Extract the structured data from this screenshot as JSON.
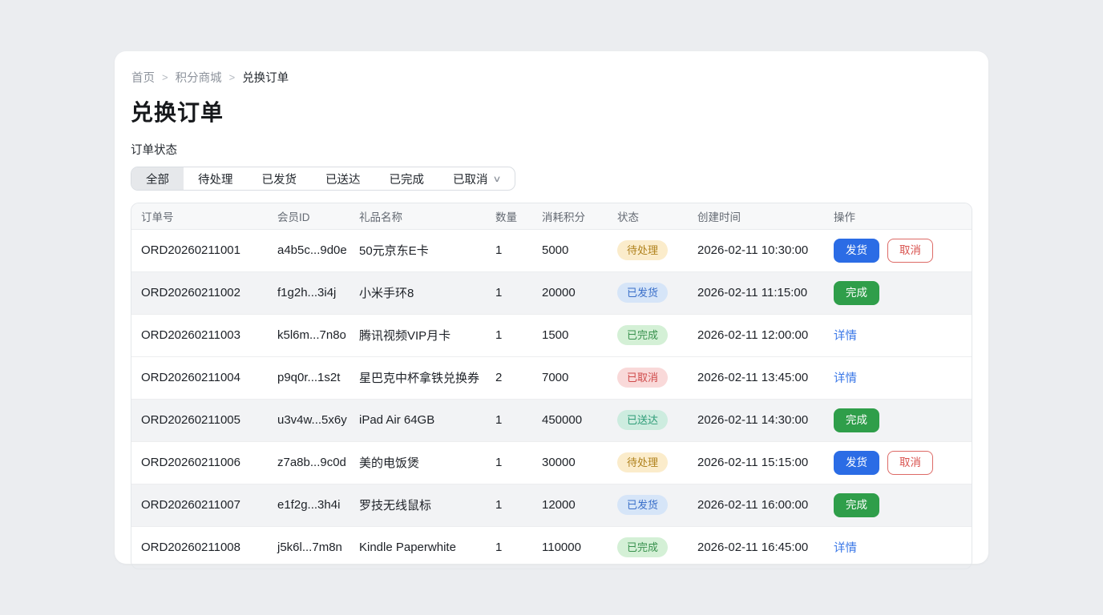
{
  "breadcrumb": {
    "separator": ">",
    "items": [
      {
        "label": "首页",
        "current": false
      },
      {
        "label": "积分商城",
        "current": false
      },
      {
        "label": "兑换订单",
        "current": true
      }
    ]
  },
  "page": {
    "title": "兑换订单",
    "filter_label": "订单状态"
  },
  "tabs": {
    "items": [
      {
        "label": "全部",
        "active": true,
        "chevron": false
      },
      {
        "label": "待处理",
        "active": false,
        "chevron": false
      },
      {
        "label": "已发货",
        "active": false,
        "chevron": false
      },
      {
        "label": "已送达",
        "active": false,
        "chevron": false
      },
      {
        "label": "已完成",
        "active": false,
        "chevron": false
      },
      {
        "label": "已取消",
        "active": false,
        "chevron": true
      }
    ]
  },
  "table": {
    "columns": [
      "订单号",
      "会员ID",
      "礼品名称",
      "数量",
      "消耗积分",
      "状态",
      "创建时间",
      "操作"
    ],
    "rows": [
      {
        "order_id": "ORD20260211001",
        "member_id": "a4b5c...9d0e",
        "gift": "50元京东E卡",
        "qty": "1",
        "points": "5000",
        "status": {
          "label": "待处理",
          "type": "pending"
        },
        "created": "2026-02-11 10:30:00",
        "actions": [
          {
            "label": "发货",
            "type": "primary",
            "name": "ship-button"
          },
          {
            "label": "取消",
            "type": "danger",
            "name": "cancel-button"
          }
        ],
        "highlight": false
      },
      {
        "order_id": "ORD20260211002",
        "member_id": "f1g2h...3i4j",
        "gift": "小米手环8",
        "qty": "1",
        "points": "20000",
        "status": {
          "label": "已发货",
          "type": "shipped"
        },
        "created": "2026-02-11 11:15:00",
        "actions": [
          {
            "label": "完成",
            "type": "success",
            "name": "complete-button"
          }
        ],
        "highlight": true
      },
      {
        "order_id": "ORD20260211003",
        "member_id": "k5l6m...7n8o",
        "gift": "腾讯视频VIP月卡",
        "qty": "1",
        "points": "1500",
        "status": {
          "label": "已完成",
          "type": "completed"
        },
        "created": "2026-02-11 12:00:00",
        "actions": [
          {
            "label": "详情",
            "type": "link",
            "name": "detail-link"
          }
        ],
        "highlight": false
      },
      {
        "order_id": "ORD20260211004",
        "member_id": "p9q0r...1s2t",
        "gift": "星巴克中杯拿铁兑换券",
        "qty": "2",
        "points": "7000",
        "status": {
          "label": "已取消",
          "type": "cancelled"
        },
        "created": "2026-02-11 13:45:00",
        "actions": [
          {
            "label": "详情",
            "type": "link",
            "name": "detail-link"
          }
        ],
        "highlight": false
      },
      {
        "order_id": "ORD20260211005",
        "member_id": "u3v4w...5x6y",
        "gift": "iPad Air 64GB",
        "qty": "1",
        "points": "450000",
        "status": {
          "label": "已送达",
          "type": "delivered"
        },
        "created": "2026-02-11 14:30:00",
        "actions": [
          {
            "label": "完成",
            "type": "success",
            "name": "complete-button"
          }
        ],
        "highlight": true
      },
      {
        "order_id": "ORD20260211006",
        "member_id": "z7a8b...9c0d",
        "gift": "美的电饭煲",
        "qty": "1",
        "points": "30000",
        "status": {
          "label": "待处理",
          "type": "pending"
        },
        "created": "2026-02-11 15:15:00",
        "actions": [
          {
            "label": "发货",
            "type": "primary",
            "name": "ship-button"
          },
          {
            "label": "取消",
            "type": "danger",
            "name": "cancel-button"
          }
        ],
        "highlight": false
      },
      {
        "order_id": "ORD20260211007",
        "member_id": "e1f2g...3h4i",
        "gift": "罗技无线鼠标",
        "qty": "1",
        "points": "12000",
        "status": {
          "label": "已发货",
          "type": "shipped"
        },
        "created": "2026-02-11 16:00:00",
        "actions": [
          {
            "label": "完成",
            "type": "success",
            "name": "complete-button"
          }
        ],
        "highlight": true
      },
      {
        "order_id": "ORD20260211008",
        "member_id": "j5k6l...7m8n",
        "gift": "Kindle Paperwhite",
        "qty": "1",
        "points": "110000",
        "status": {
          "label": "已完成",
          "type": "completed"
        },
        "created": "2026-02-11 16:45:00",
        "actions": [
          {
            "label": "详情",
            "type": "link",
            "name": "detail-link"
          }
        ],
        "highlight": false
      }
    ]
  },
  "colors": {
    "page_background": "#ebedf0",
    "card_background": "#ffffff",
    "accent_blue": "#2b6ce5",
    "success_green": "#2f9e4a",
    "danger_red": "#d9534f",
    "badge_pending_bg": "#fbeccb",
    "badge_shipped_bg": "#d6e5f8",
    "badge_completed_bg": "#d4f0d6",
    "badge_cancelled_bg": "#f9d9d9",
    "badge_delivered_bg": "#cdecdf"
  }
}
